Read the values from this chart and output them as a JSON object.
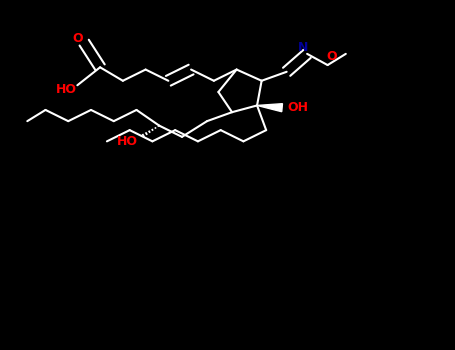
{
  "background_color": "#000000",
  "bond_color": "#ffffff",
  "bond_width": 1.5,
  "figsize": [
    4.55,
    3.5
  ],
  "dpi": 100,
  "xlim": [
    0.0,
    10.0
  ],
  "ylim": [
    0.0,
    7.8
  ]
}
